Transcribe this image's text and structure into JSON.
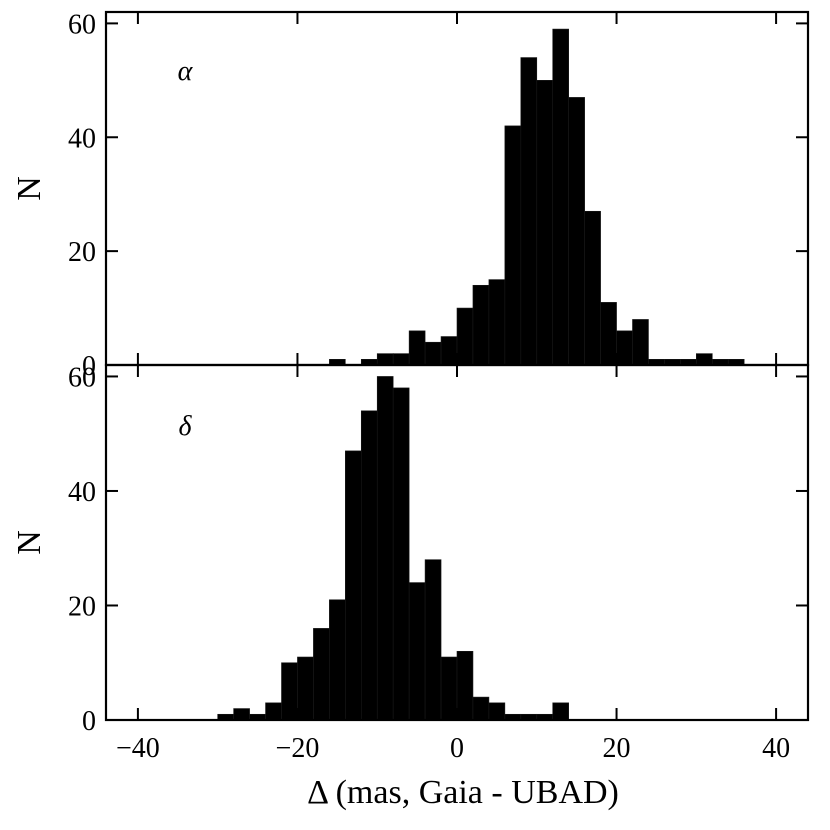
{
  "chart_data": {
    "type": "bar",
    "xlabel": "Δ (mas, Gaia - UBAD)",
    "xlim": [
      -44,
      44
    ],
    "x_ticks": [
      -40,
      -20,
      0,
      20,
      40
    ],
    "x_tick_labels": [
      "−40",
      "−20",
      "0",
      "20",
      "40"
    ],
    "bar_color": "#000000",
    "panels": [
      {
        "id": "alpha",
        "label": "α",
        "ylabel": "N",
        "ylim": [
          0,
          62
        ],
        "y_ticks": [
          0,
          20,
          40,
          60
        ],
        "y_tick_labels": [
          "0",
          "20",
          "40",
          "60"
        ],
        "bin_width": 2,
        "bins": [
          {
            "x0": -18,
            "count": 0
          },
          {
            "x0": -16,
            "count": 1
          },
          {
            "x0": -14,
            "count": 0
          },
          {
            "x0": -12,
            "count": 1
          },
          {
            "x0": -10,
            "count": 2
          },
          {
            "x0": -8,
            "count": 2
          },
          {
            "x0": -6,
            "count": 6
          },
          {
            "x0": -4,
            "count": 4
          },
          {
            "x0": -2,
            "count": 5
          },
          {
            "x0": 0,
            "count": 10
          },
          {
            "x0": 2,
            "count": 14
          },
          {
            "x0": 4,
            "count": 15
          },
          {
            "x0": 6,
            "count": 42
          },
          {
            "x0": 8,
            "count": 54
          },
          {
            "x0": 10,
            "count": 50
          },
          {
            "x0": 12,
            "count": 59
          },
          {
            "x0": 14,
            "count": 47
          },
          {
            "x0": 16,
            "count": 27
          },
          {
            "x0": 18,
            "count": 11
          },
          {
            "x0": 20,
            "count": 6
          },
          {
            "x0": 22,
            "count": 8
          },
          {
            "x0": 24,
            "count": 1
          },
          {
            "x0": 26,
            "count": 1
          },
          {
            "x0": 28,
            "count": 1
          },
          {
            "x0": 30,
            "count": 2
          },
          {
            "x0": 32,
            "count": 1
          },
          {
            "x0": 34,
            "count": 1
          }
        ]
      },
      {
        "id": "delta",
        "label": "δ",
        "ylabel": "N",
        "ylim": [
          0,
          62
        ],
        "y_ticks": [
          0,
          20,
          40,
          60
        ],
        "y_tick_labels": [
          "0",
          "20",
          "40",
          "60"
        ],
        "bin_width": 2,
        "bins": [
          {
            "x0": -30,
            "count": 1
          },
          {
            "x0": -28,
            "count": 2
          },
          {
            "x0": -26,
            "count": 1
          },
          {
            "x0": -24,
            "count": 3
          },
          {
            "x0": -22,
            "count": 10
          },
          {
            "x0": -20,
            "count": 11
          },
          {
            "x0": -18,
            "count": 16
          },
          {
            "x0": -16,
            "count": 21
          },
          {
            "x0": -14,
            "count": 47
          },
          {
            "x0": -12,
            "count": 54
          },
          {
            "x0": -10,
            "count": 60
          },
          {
            "x0": -8,
            "count": 58
          },
          {
            "x0": -6,
            "count": 24
          },
          {
            "x0": -4,
            "count": 28
          },
          {
            "x0": -2,
            "count": 11
          },
          {
            "x0": 0,
            "count": 12
          },
          {
            "x0": 2,
            "count": 4
          },
          {
            "x0": 4,
            "count": 3
          },
          {
            "x0": 6,
            "count": 1
          },
          {
            "x0": 8,
            "count": 1
          },
          {
            "x0": 10,
            "count": 1
          },
          {
            "x0": 12,
            "count": 3
          }
        ]
      }
    ]
  }
}
